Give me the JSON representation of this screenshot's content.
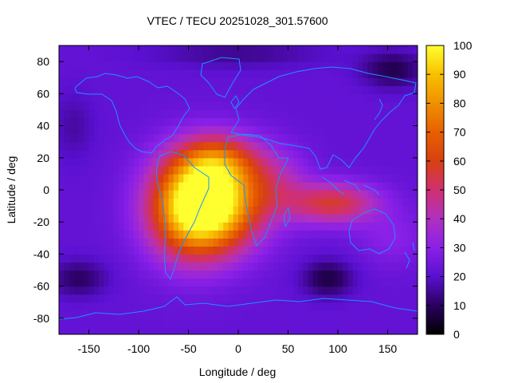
{
  "chart_data": {
    "type": "heatmap",
    "title": "VTEC / TECU 20251028_301.57600",
    "xlabel": "Longitude / deg",
    "ylabel": "Latitude / deg",
    "xlim": [
      -180,
      180
    ],
    "ylim": [
      -90,
      90
    ],
    "xticks": [
      -150,
      -100,
      -50,
      0,
      50,
      100,
      150
    ],
    "yticks": [
      -80,
      -60,
      -40,
      -20,
      0,
      20,
      40,
      60,
      80
    ],
    "colorbar": {
      "range": [
        0,
        100
      ],
      "ticks": [
        0,
        10,
        20,
        30,
        40,
        50,
        60,
        70,
        80,
        90,
        100
      ],
      "palette": [
        "#000000",
        "#2a0060",
        "#5a10d0",
        "#8a20e8",
        "#b030c0",
        "#d03070",
        "#d84010",
        "#e86000",
        "#f09000",
        "#f8c000",
        "#ffff30"
      ]
    },
    "coastline_color": "#1e90ff",
    "grid_step_deg": 5,
    "background_level": 22,
    "features": [
      {
        "lon": -25,
        "lat": -8,
        "peak": 70,
        "sigma_lon": 34,
        "sigma_lat": 20
      },
      {
        "lon": -50,
        "lat": -12,
        "peak": 42,
        "sigma_lon": 30,
        "sigma_lat": 22
      },
      {
        "lon": -20,
        "lat": 18,
        "peak": 30,
        "sigma_lon": 28,
        "sigma_lat": 12
      },
      {
        "lon": 95,
        "lat": -8,
        "peak": 34,
        "sigma_lon": 32,
        "sigma_lat": 9
      },
      {
        "lon": 40,
        "lat": 5,
        "peak": 14,
        "sigma_lon": 22,
        "sigma_lat": 15
      },
      {
        "lon": 155,
        "lat": -30,
        "peak": 8,
        "sigma_lon": 25,
        "sigma_lat": 12
      },
      {
        "lon": 90,
        "lat": -55,
        "peak": -15,
        "sigma_lon": 18,
        "sigma_lat": 8
      },
      {
        "lon": -160,
        "lat": -55,
        "peak": -12,
        "sigma_lon": 20,
        "sigma_lat": 8
      },
      {
        "lon": 155,
        "lat": 75,
        "peak": -14,
        "sigma_lon": 22,
        "sigma_lat": 8
      },
      {
        "lon": 0,
        "lat": 85,
        "peak": -8,
        "sigma_lon": 60,
        "sigma_lat": 6
      },
      {
        "lon": -165,
        "lat": 40,
        "peak": -6,
        "sigma_lon": 15,
        "sigma_lat": 15
      }
    ]
  }
}
